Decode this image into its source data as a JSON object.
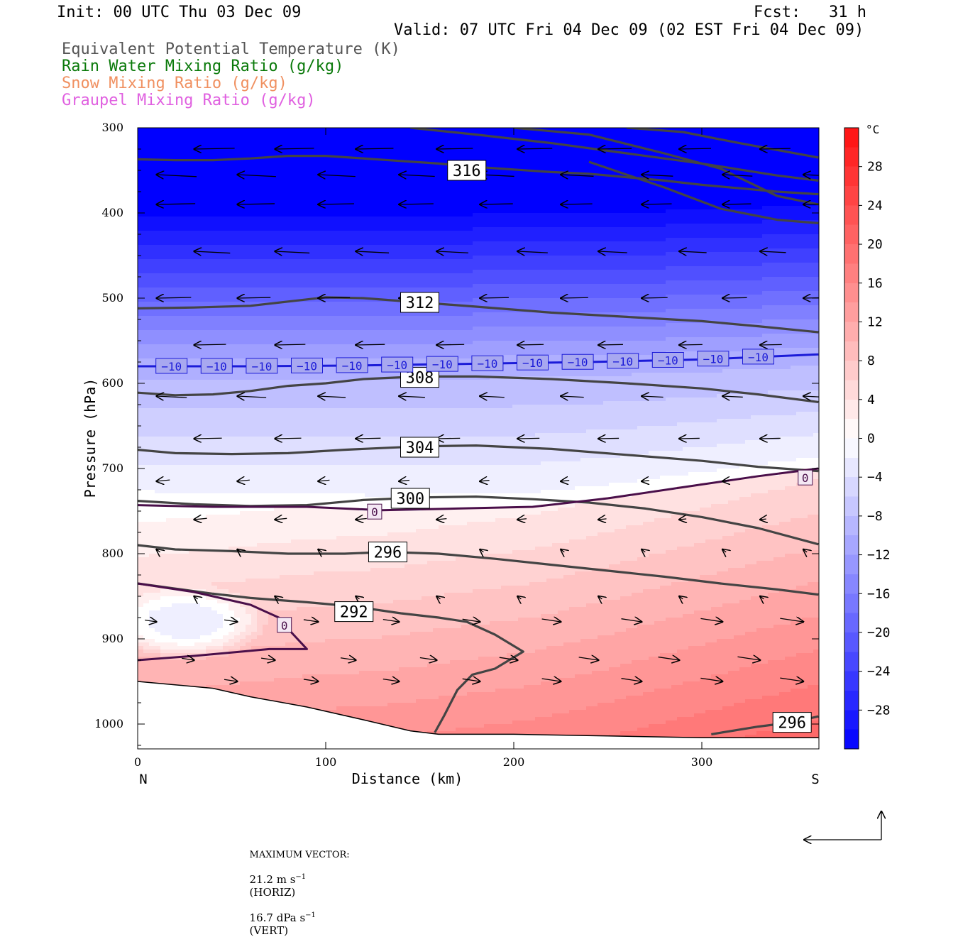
{
  "header": {
    "init": "Init: 00 UTC Thu 03 Dec 09",
    "fcst": "Fcst:   31 h",
    "valid": "Valid: 07 UTC Fri 04 Dec 09 (02 EST Fri 04 Dec 09)"
  },
  "legend": [
    {
      "label": "Equivalent Potential Temperature (K)",
      "color": "#555555"
    },
    {
      "label": "Rain Water Mixing Ratio (g/kg)",
      "color": "#0b7a0b"
    },
    {
      "label": "Snow Mixing Ratio (g/kg)",
      "color": "#f09060"
    },
    {
      "label": "Graupel Mixing Ratio (g/kg)",
      "color": "#e060e0"
    }
  ],
  "chart_data": {
    "type": "heatmap",
    "xlabel": "Distance (km)",
    "ylabel": "Pressure (hPa)",
    "xlim": [
      0,
      362
    ],
    "ylim": [
      1030,
      300
    ],
    "x_ticks": [
      0,
      100,
      200,
      300
    ],
    "y_ticks": [
      300,
      400,
      500,
      600,
      700,
      800,
      900,
      1000
    ],
    "x_end_labels": {
      "left": "N",
      "right": "S"
    },
    "colorbar": {
      "unit": "°C",
      "range": [
        -32,
        32
      ],
      "tick_labels": [
        "28",
        "24",
        "20",
        "16",
        "12",
        "8",
        "4",
        "0",
        "−4",
        "−8",
        "−12",
        "−16",
        "−20",
        "−24",
        "−28"
      ],
      "tick_values": [
        28,
        24,
        20,
        16,
        12,
        8,
        4,
        0,
        -4,
        -8,
        -12,
        -16,
        -20,
        -24,
        -28
      ]
    },
    "theta_e_contours": [
      {
        "value": 316,
        "label": "316",
        "label_at": [
          175,
          350
        ],
        "points": [
          [
            0,
            337
          ],
          [
            20,
            338
          ],
          [
            40,
            338
          ],
          [
            60,
            336
          ],
          [
            80,
            333
          ],
          [
            100,
            333
          ],
          [
            120,
            336
          ],
          [
            140,
            339
          ],
          [
            160,
            342
          ],
          [
            180,
            346
          ],
          [
            200,
            349
          ],
          [
            220,
            352
          ],
          [
            240,
            354
          ],
          [
            260,
            358
          ],
          [
            280,
            362
          ],
          [
            300,
            367
          ],
          [
            320,
            371
          ],
          [
            340,
            375
          ],
          [
            362,
            378
          ]
        ]
      },
      {
        "value": 316,
        "label": "",
        "points": [
          [
            145,
            300
          ],
          [
            180,
            308
          ],
          [
            220,
            318
          ],
          [
            260,
            330
          ],
          [
            300,
            342
          ],
          [
            340,
            356
          ],
          [
            362,
            362
          ]
        ]
      },
      {
        "value": 316,
        "label": "",
        "points": [
          [
            200,
            300
          ],
          [
            240,
            308
          ],
          [
            280,
            330
          ],
          [
            310,
            348
          ],
          [
            340,
            380
          ],
          [
            362,
            390
          ]
        ]
      },
      {
        "value": 316,
        "label": "",
        "points": [
          [
            260,
            300
          ],
          [
            290,
            305
          ],
          [
            320,
            318
          ],
          [
            362,
            335
          ]
        ]
      },
      {
        "value": 316,
        "label": "",
        "points": [
          [
            240,
            340
          ],
          [
            280,
            370
          ],
          [
            310,
            395
          ],
          [
            340,
            408
          ],
          [
            362,
            412
          ]
        ]
      },
      {
        "value": 312,
        "label": "312",
        "label_at": [
          150,
          505
        ],
        "points": [
          [
            0,
            512
          ],
          [
            30,
            511
          ],
          [
            60,
            509
          ],
          [
            80,
            504
          ],
          [
            100,
            499
          ],
          [
            120,
            500
          ],
          [
            150,
            505
          ],
          [
            180,
            510
          ],
          [
            220,
            517
          ],
          [
            260,
            522
          ],
          [
            300,
            527
          ],
          [
            330,
            533
          ],
          [
            362,
            540
          ]
        ]
      },
      {
        "value": 308,
        "label": "308",
        "label_at": [
          150,
          593
        ],
        "points": [
          [
            0,
            611
          ],
          [
            20,
            614
          ],
          [
            40,
            613
          ],
          [
            60,
            609
          ],
          [
            80,
            603
          ],
          [
            100,
            600
          ],
          [
            120,
            595
          ],
          [
            150,
            592
          ],
          [
            180,
            592
          ],
          [
            220,
            595
          ],
          [
            260,
            600
          ],
          [
            300,
            606
          ],
          [
            330,
            613
          ],
          [
            362,
            622
          ]
        ]
      },
      {
        "value": 304,
        "label": "304",
        "label_at": [
          150,
          675
        ],
        "points": [
          [
            0,
            678
          ],
          [
            20,
            682
          ],
          [
            50,
            683
          ],
          [
            80,
            682
          ],
          [
            110,
            678
          ],
          [
            150,
            674
          ],
          [
            180,
            673
          ],
          [
            220,
            677
          ],
          [
            260,
            684
          ],
          [
            300,
            691
          ],
          [
            330,
            698
          ],
          [
            362,
            703
          ]
        ]
      },
      {
        "value": 300,
        "label": "300",
        "label_at": [
          145,
          735
        ],
        "points": [
          [
            0,
            738
          ],
          [
            30,
            742
          ],
          [
            60,
            744
          ],
          [
            90,
            743
          ],
          [
            120,
            737
          ],
          [
            150,
            734
          ],
          [
            180,
            733
          ],
          [
            210,
            736
          ],
          [
            240,
            740
          ],
          [
            270,
            747
          ],
          [
            300,
            757
          ],
          [
            330,
            770
          ],
          [
            362,
            789
          ]
        ]
      },
      {
        "value": 296,
        "label": "296",
        "label_at": [
          133,
          798
        ],
        "points": [
          [
            0,
            790
          ],
          [
            20,
            795
          ],
          [
            50,
            797
          ],
          [
            80,
            800
          ],
          [
            110,
            800
          ],
          [
            133,
            798
          ],
          [
            160,
            800
          ],
          [
            190,
            806
          ],
          [
            220,
            813
          ],
          [
            250,
            820
          ],
          [
            280,
            827
          ],
          [
            310,
            835
          ],
          [
            340,
            842
          ],
          [
            362,
            848
          ]
        ]
      },
      {
        "value": 292,
        "label": "292",
        "label_at": [
          115,
          868
        ],
        "points": [
          [
            0,
            835
          ],
          [
            20,
            841
          ],
          [
            40,
            847
          ],
          [
            60,
            852
          ],
          [
            90,
            857
          ],
          [
            115,
            862
          ],
          [
            140,
            870
          ],
          [
            160,
            875
          ],
          [
            175,
            880
          ],
          [
            190,
            895
          ],
          [
            205,
            915
          ],
          [
            190,
            935
          ],
          [
            178,
            942
          ],
          [
            170,
            960
          ],
          [
            163,
            990
          ],
          [
            158,
            1010
          ]
        ]
      },
      {
        "value": 296,
        "label": "296",
        "label_at": [
          348,
          998
        ],
        "points": [
          [
            305,
            1012
          ],
          [
            330,
            1003
          ],
          [
            348,
            998
          ],
          [
            362,
            991
          ]
        ]
      }
    ],
    "isotherms": [
      {
        "value": -10,
        "color": "#1b1bd8",
        "points": [
          [
            0,
            580
          ],
          [
            60,
            580
          ],
          [
            120,
            579
          ],
          [
            180,
            577
          ],
          [
            240,
            575
          ],
          [
            300,
            572
          ],
          [
            362,
            566
          ]
        ],
        "label_x": [
          18,
          42,
          66,
          90,
          114,
          138,
          162,
          186,
          210,
          234,
          258,
          282,
          306,
          330
        ]
      },
      {
        "value": 0,
        "color": "#4a0f4a",
        "points": [
          [
            0,
            743
          ],
          [
            40,
            745
          ],
          [
            90,
            745
          ],
          [
            130,
            749
          ],
          [
            170,
            747
          ],
          [
            210,
            745
          ],
          [
            250,
            735
          ],
          [
            290,
            722
          ],
          [
            330,
            709
          ],
          [
            362,
            700
          ]
        ],
        "labels": [
          {
            "x": 126,
            "y": 751
          },
          {
            "x": 355,
            "y": 711
          }
        ]
      },
      {
        "value": 0,
        "color": "#4a0f4a",
        "points": [
          [
            0,
            835
          ],
          [
            30,
            845
          ],
          [
            60,
            860
          ],
          [
            75,
            875
          ],
          [
            82,
            893
          ],
          [
            90,
            912
          ],
          [
            70,
            912
          ],
          [
            55,
            915
          ],
          [
            30,
            920
          ],
          [
            0,
            925
          ]
        ],
        "labels": [
          {
            "x": 78,
            "y": 884
          }
        ]
      }
    ],
    "terrain_pressure": [
      [
        0,
        950
      ],
      [
        40,
        958
      ],
      [
        60,
        968
      ],
      [
        90,
        980
      ],
      [
        120,
        995
      ],
      [
        145,
        1008
      ],
      [
        160,
        1012
      ],
      [
        200,
        1012
      ],
      [
        250,
        1014
      ],
      [
        300,
        1016
      ],
      [
        362,
        1016
      ]
    ],
    "footer": {
      "label": "MAXIMUM VECTOR:",
      "horiz_value": "21.2 m s",
      "horiz_exp": "−1",
      "horiz_tag": "(HORIZ)",
      "vert_value": "16.7 dPa s",
      "vert_exp": "−1",
      "vert_tag": "(VERT)"
    }
  }
}
